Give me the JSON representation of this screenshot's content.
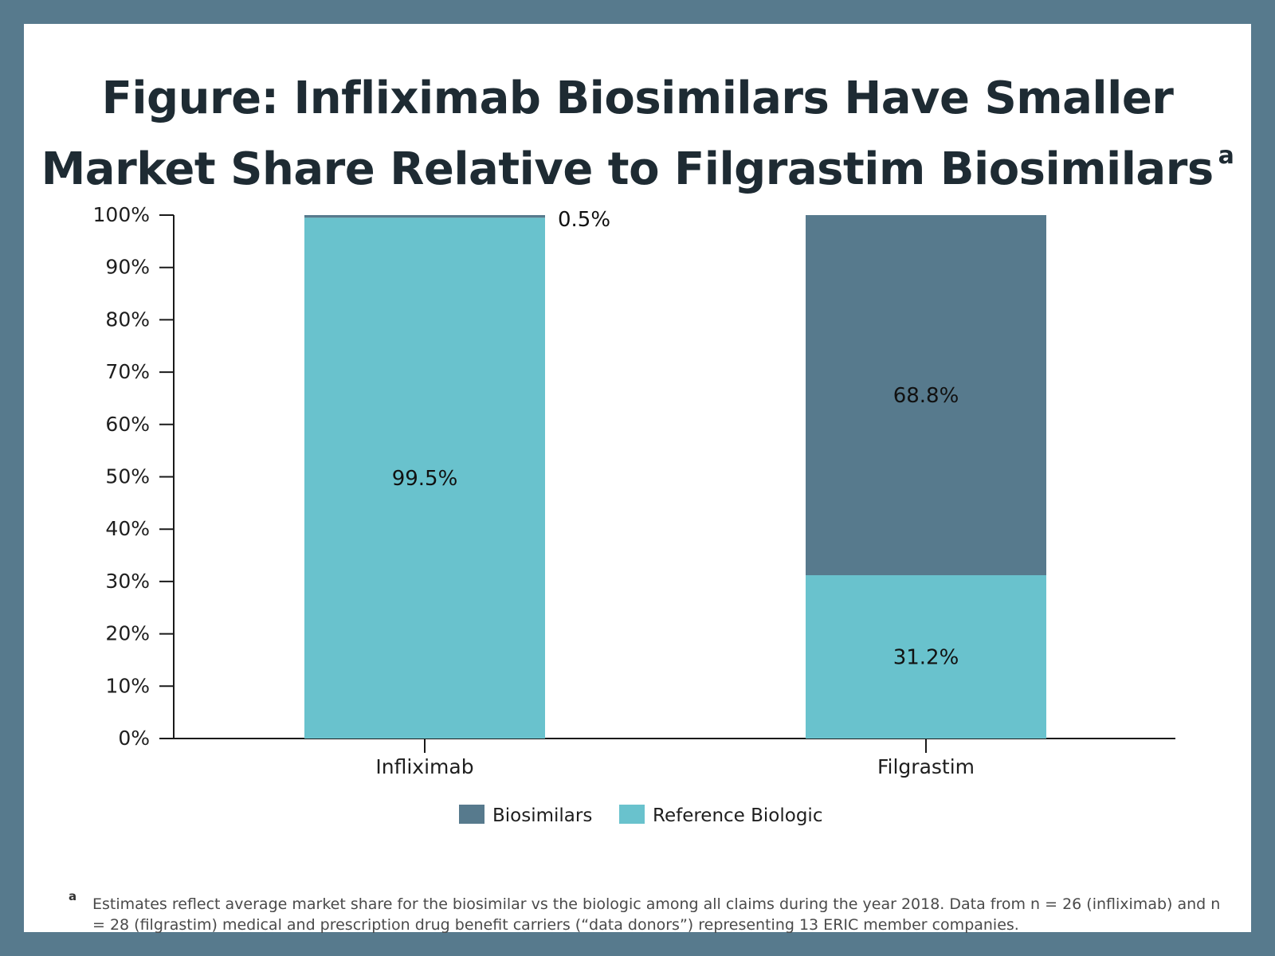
{
  "figure": {
    "title_line1": "Figure: Infliximab Biosimilars Have Smaller",
    "title_line2": "Market Share Relative to Filgrastim Biosimilars",
    "title_footnote_mark": "a",
    "footnote_mark": "a",
    "footnote_text": "Estimates reflect average market share for the biosimilar vs the biologic among all claims during the year 2018. Data from n = 26 (infliximab) and n = 28 (filgrastim) medical and prescription drug benefit carriers (“data donors”) representing 13 ERIC member companies."
  },
  "colors": {
    "border": "#577a8d",
    "biosimilars": "#577a8d",
    "reference": "#69c2cd",
    "axis": "#1a1a1a",
    "text": "#1e1e1e"
  },
  "chart_data": {
    "type": "bar",
    "stacked": true,
    "title": "Figure: Infliximab Biosimilars Have Smaller Market Share Relative to Filgrastim Biosimilars",
    "categories": [
      "Infliximab",
      "Filgrastim"
    ],
    "series": [
      {
        "name": "Reference Biologic",
        "values": [
          99.5,
          31.2
        ],
        "labels": [
          "99.5%",
          "31.2%"
        ]
      },
      {
        "name": "Biosimilars",
        "values": [
          0.5,
          68.8
        ],
        "labels": [
          "0.5%",
          "68.8%"
        ]
      }
    ],
    "ylim": [
      0,
      100
    ],
    "yticks": [
      0,
      10,
      20,
      30,
      40,
      50,
      60,
      70,
      80,
      90,
      100
    ],
    "ytick_labels": [
      "0%",
      "10%",
      "20%",
      "30%",
      "40%",
      "50%",
      "60%",
      "70%",
      "80%",
      "90%",
      "100%"
    ],
    "xlabel": "",
    "ylabel": "",
    "legend": [
      "Biosimilars",
      "Reference Biologic"
    ],
    "legend_position": "bottom-center",
    "grid": false
  }
}
